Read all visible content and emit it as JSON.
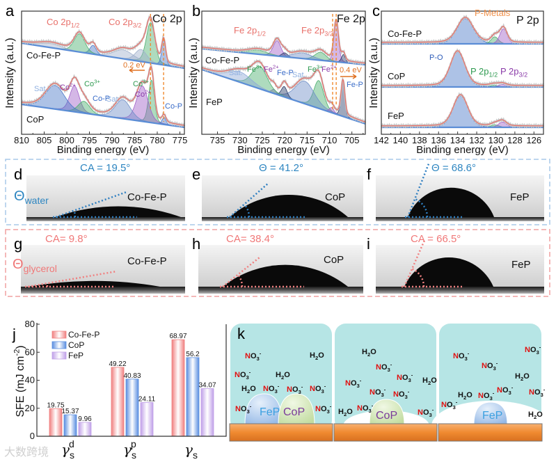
{
  "figure": {
    "watermark": "大数跨境"
  },
  "chart_data": [
    {
      "id": "a",
      "panel_label": "a",
      "type": "line",
      "title": "Co 2p",
      "xlabel": "Binding energy (eV)",
      "ylabel": "Intensity (a.u.)",
      "xlim": [
        810,
        774
      ],
      "xticks": [
        810,
        805,
        800,
        795,
        790,
        785,
        780,
        775
      ],
      "samples": [
        {
          "name": "Co-Fe-P",
          "components": [
            {
              "center": 781.5,
              "fwhm": 2.2,
              "height": 1.0,
              "color": "#4caf6e"
            },
            {
              "center": 778.6,
              "fwhm": 1.0,
              "height": 0.6,
              "color": "#4a78c8"
            },
            {
              "center": 783.6,
              "fwhm": 3.0,
              "height": 0.3,
              "color": "#9fb0cc"
            },
            {
              "center": 787.5,
              "fwhm": 5.0,
              "height": 0.22,
              "color": "#9fb0cc"
            },
            {
              "center": 794.2,
              "fwhm": 1.6,
              "height": 0.22,
              "color": "#4a78c8"
            },
            {
              "center": 797.2,
              "fwhm": 2.8,
              "height": 0.45,
              "color": "#4caf6e"
            },
            {
              "center": 803.5,
              "fwhm": 6.0,
              "height": 0.1,
              "color": "#9fb0cc"
            }
          ]
        },
        {
          "name": "CoP",
          "components": [
            {
              "center": 781.3,
              "fwhm": 1.5,
              "height": 0.9,
              "color": "#4caf6e"
            },
            {
              "center": 783.3,
              "fwhm": 3.0,
              "height": 0.75,
              "color": "#a05fc8"
            },
            {
              "center": 778.5,
              "fwhm": 1.0,
              "height": 0.15,
              "color": "#4a78c8"
            },
            {
              "center": 787.6,
              "fwhm": 4.0,
              "height": 0.4,
              "color": "#6f8fc8"
            },
            {
              "center": 798.3,
              "fwhm": 2.5,
              "height": 0.55,
              "color": "#a05fc8"
            },
            {
              "center": 796.2,
              "fwhm": 3.0,
              "height": 0.25,
              "color": "#4caf6e"
            },
            {
              "center": 802.6,
              "fwhm": 5.0,
              "height": 0.5,
              "color": "#4a78c8"
            }
          ]
        }
      ],
      "shift_lines": [
        781.5,
        778.6
      ],
      "annotations": [
        {
          "text": "Co 2p",
          "sub": "1/2",
          "color": "#e8706a"
        },
        {
          "text": "Co 2p",
          "sub": "3/2",
          "color": "#e8706a"
        },
        {
          "text": "Co-Fe-P",
          "color": "#111111"
        },
        {
          "text": "0.2 eV",
          "color": "#e07020"
        },
        {
          "text": "Sat.",
          "color": "#8fb0e0"
        },
        {
          "text": "Co",
          "sup": "2+",
          "color": "#8a3aa8"
        },
        {
          "text": "Co",
          "sup": "3+",
          "color": "#2e9a50"
        },
        {
          "text": "Co",
          "sup": "3+",
          "color": "#2e9a50"
        },
        {
          "text": "Co",
          "sup": "2+",
          "color": "#8a3aa8"
        },
        {
          "text": "Co-P",
          "color": "#3a6cc8"
        },
        {
          "text": "Sat.",
          "color": "#8fb0e0"
        },
        {
          "text": "Co-P",
          "color": "#3a6cc8"
        },
        {
          "text": "CoP",
          "color": "#111111"
        }
      ]
    },
    {
      "id": "b",
      "panel_label": "b",
      "type": "line",
      "title": "Fe 2p",
      "xlabel": "Binding energy (eV)",
      "ylabel": "Intensity (a.u.)",
      "xlim": [
        738.5,
        702
      ],
      "xticks": [
        735,
        730,
        725,
        720,
        715,
        710,
        705
      ],
      "samples": [
        {
          "name": "Co-Fe-P",
          "components": [
            {
              "center": 708.5,
              "fwhm": 1.2,
              "height": 1.0,
              "color": "#a05fc8"
            },
            {
              "center": 706.9,
              "fwhm": 1.0,
              "height": 0.2,
              "color": "#2b3f6b"
            },
            {
              "center": 721.7,
              "fwhm": 2.0,
              "height": 0.38,
              "color": "#a05fc8"
            },
            {
              "center": 720.0,
              "fwhm": 1.5,
              "height": 0.1,
              "color": "#2b3f6b"
            },
            {
              "center": 712.0,
              "fwhm": 3.0,
              "height": 0.2,
              "color": "#4caf6e"
            },
            {
              "center": 716.0,
              "fwhm": 5.0,
              "height": 0.14,
              "color": "#6f8fc8"
            },
            {
              "center": 726.0,
              "fwhm": 5.0,
              "height": 0.1,
              "color": "#4caf6e"
            }
          ]
        },
        {
          "name": "FeP",
          "components": [
            {
              "center": 707.0,
              "fwhm": 1.0,
              "height": 1.0,
              "color": "#2b3f6b"
            },
            {
              "center": 712.4,
              "fwhm": 2.6,
              "height": 0.8,
              "color": "#4caf6e"
            },
            {
              "center": 715.5,
              "fwhm": 5.0,
              "height": 0.65,
              "color": "#6f8fc8"
            },
            {
              "center": 709.5,
              "fwhm": 1.2,
              "height": 0.15,
              "color": "#a05fc8"
            },
            {
              "center": 720.1,
              "fwhm": 1.5,
              "height": 0.3,
              "color": "#2b3f6b"
            },
            {
              "center": 722.4,
              "fwhm": 1.2,
              "height": 0.12,
              "color": "#a05fc8"
            },
            {
              "center": 725.6,
              "fwhm": 4.0,
              "height": 0.65,
              "color": "#4caf6e"
            },
            {
              "center": 730.0,
              "fwhm": 6.0,
              "height": 0.3,
              "color": "#8fa8d8"
            }
          ]
        }
      ],
      "shift_lines": [
        708.5,
        709.3
      ],
      "annotations": [
        {
          "text": "Fe 2p",
          "sub": "1/2",
          "color": "#e8706a"
        },
        {
          "text": "Fe 2p",
          "sub": "3/2",
          "color": "#e8706a"
        },
        {
          "text": "Co-Fe-P",
          "color": "#111111"
        },
        {
          "text": "Sat.",
          "color": "#8fb0e0"
        },
        {
          "text": "Fe",
          "sup": "3+",
          "color": "#2e9a50"
        },
        {
          "text": "Fe",
          "sup": "2+",
          "color": "#8a3aa8"
        },
        {
          "text": "Fe-P",
          "color": "#3a6cc8"
        },
        {
          "text": "Sat.",
          "color": "#8fb0e0"
        },
        {
          "text": "Fe",
          "sup": "3+",
          "color": "#2e9a50"
        },
        {
          "text": "Fe",
          "sup": "2+",
          "color": "#8a3aa8"
        },
        {
          "text": "0.4 eV",
          "color": "#e07020"
        },
        {
          "text": "Fe-P",
          "color": "#3a6cc8"
        },
        {
          "text": "FeP",
          "color": "#111111"
        }
      ]
    },
    {
      "id": "c",
      "panel_label": "c",
      "type": "line",
      "title": "P 2p",
      "xlabel": "Binding energy (eV)",
      "ylabel": "Intensity (a.u.)",
      "xlim": [
        142,
        125
      ],
      "xticks": [
        142,
        140,
        138,
        136,
        134,
        132,
        130,
        128,
        126
      ],
      "samples": [
        {
          "name": "Co-Fe-P",
          "components": [
            {
              "center": 133.2,
              "fwhm": 2.0,
              "height": 1.0,
              "color": "#4a78c8"
            },
            {
              "center": 130.1,
              "fwhm": 0.9,
              "height": 0.28,
              "color": "#4caf6e"
            },
            {
              "center": 129.2,
              "fwhm": 0.9,
              "height": 0.6,
              "color": "#a05fc8"
            }
          ]
        },
        {
          "name": "CoP",
          "components": [
            {
              "center": 134.0,
              "fwhm": 1.8,
              "height": 1.0,
              "color": "#4a78c8"
            },
            {
              "center": 130.2,
              "fwhm": 1.0,
              "height": 0.05,
              "color": "#4caf6e"
            },
            {
              "center": 129.3,
              "fwhm": 1.0,
              "height": 0.07,
              "color": "#a05fc8"
            }
          ]
        },
        {
          "name": "FeP",
          "components": [
            {
              "center": 133.7,
              "fwhm": 1.8,
              "height": 1.0,
              "color": "#4a78c8"
            },
            {
              "center": 130.1,
              "fwhm": 1.0,
              "height": 0.08,
              "color": "#4caf6e"
            },
            {
              "center": 129.3,
              "fwhm": 1.0,
              "height": 0.17,
              "color": "#a05fc8"
            }
          ]
        }
      ],
      "shift_lines": [],
      "annotations": [
        {
          "text": "P-Metals",
          "color": "#f0904a"
        },
        {
          "text": "Co-Fe-P",
          "color": "#111111"
        },
        {
          "text": "P-O",
          "color": "#2e5cb8"
        },
        {
          "text": "P 2p",
          "sub": "1/2",
          "color": "#2e9a50"
        },
        {
          "text": "P 2p",
          "sub": "3/2",
          "color": "#8a3aa8"
        },
        {
          "text": "CoP",
          "color": "#111111"
        },
        {
          "text": "FeP",
          "color": "#111111"
        }
      ]
    },
    {
      "id": "j",
      "panel_label": "j",
      "type": "bar",
      "ylabel": {
        "text": "SFE (mJ cm",
        "sup": "-2",
        "end": ")"
      },
      "ylim": [
        0,
        80
      ],
      "yticks": [
        0,
        20,
        40,
        60,
        80
      ],
      "categories": [
        {
          "base": "γ",
          "sub": "s",
          "sup": "d"
        },
        {
          "base": "γ",
          "sub": "s",
          "sup": "p"
        },
        {
          "base": "γ",
          "sub": "s",
          "sup": ""
        }
      ],
      "series": [
        {
          "name": "Co-Fe-P",
          "color": "#f08080",
          "values": [
            19.75,
            49.22,
            68.97
          ],
          "labels": [
            "19.75",
            "49.22",
            "68.97"
          ]
        },
        {
          "name": "CoP",
          "color": "#5a8ee0",
          "values": [
            15.37,
            40.83,
            56.2
          ],
          "labels": [
            "15.37",
            "40.83",
            "56.2"
          ]
        },
        {
          "name": "FeP",
          "color": "#c0a0e8",
          "values": [
            9.96,
            24.11,
            34.07
          ],
          "labels": [
            "9.96",
            "24.11",
            "34.07"
          ]
        }
      ],
      "legend": "top-left"
    }
  ],
  "contact_angle": {
    "theta_water": {
      "symbol": "Θ",
      "sub": "water",
      "color": "#2e86c1"
    },
    "theta_glycerol": {
      "symbol": "Θ",
      "sub": "glycerol",
      "color": "#f07878"
    },
    "panels": [
      {
        "label": "d",
        "liquid": "water",
        "sample": "Co-Fe-P",
        "angle": 19.5,
        "angle_text": "CA = 19.5°"
      },
      {
        "label": "e",
        "liquid": "water",
        "sample": "CoP",
        "angle": 41.2,
        "angle_text": "Θ = 41.2°"
      },
      {
        "label": "f",
        "liquid": "water",
        "sample": "FeP",
        "angle": 68.6,
        "angle_text": "Θ = 68.6°"
      },
      {
        "label": "g",
        "liquid": "glycerol",
        "sample": "Co-Fe-P",
        "angle": 9.8,
        "angle_text": "CA= 9.8°"
      },
      {
        "label": "h",
        "liquid": "glycerol",
        "sample": "CoP",
        "angle": 38.4,
        "angle_text": "CA= 38.4°"
      },
      {
        "label": "i",
        "liquid": "glycerol",
        "sample": "FeP",
        "angle": 66.5,
        "angle_text": "CA = 66.5°"
      }
    ]
  },
  "schematic": {
    "label": "k",
    "boxes": [
      {
        "particles": [
          "FeP",
          "CoP"
        ],
        "species": [
          "NO3-",
          "H2O",
          "NO3-",
          "H2O",
          "H2O",
          "NO3-",
          "NO3-",
          "NO3-",
          "NO3-",
          "NO3-"
        ]
      },
      {
        "particles": [
          "CoP"
        ],
        "species": [
          "H2O",
          "NO3-",
          "NO3-",
          "H2O",
          "NO3-",
          "NO3-",
          "NO3-",
          "H2O",
          "NO3-",
          "NO3-"
        ]
      },
      {
        "particles": [
          "FeP"
        ],
        "species": [
          "NO3-",
          "NO3-",
          "NO3-",
          "H2O",
          "NO3-",
          "NO3-",
          "H2O",
          "NO3-",
          "NO3-",
          "H2O"
        ]
      }
    ]
  }
}
